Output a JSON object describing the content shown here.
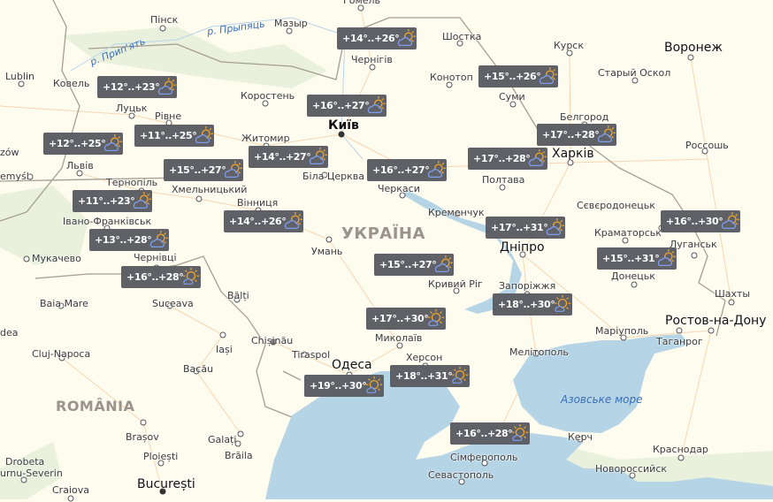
{
  "map": {
    "country_labels": [
      "УКРАЇНА",
      "ROMÂNIA"
    ],
    "water_labels": [
      "Азовське море",
      "р. Прип'ять",
      "р. Прыпяць"
    ],
    "colors": {
      "land": "#fefbef",
      "water": "#b5d4e5",
      "forest": "#e9f0dc",
      "border": "#a59d92",
      "road": "#f8d6b0",
      "badge": "#5b5d63",
      "sun": "#f5a623",
      "cloud": "#7b9cf0"
    },
    "cities": [
      "Гомель",
      "Пінск",
      "Мазыр",
      "Чернігів",
      "Шостка",
      "Курск",
      "Воронеж",
      "Конотоп",
      "Старый Оскол",
      "Lublin",
      "Ковель",
      "Коростень",
      "Суми",
      "Луцьк",
      "Рівне",
      "Київ",
      "Белгород",
      "Житомир",
      "Харків",
      "Львів",
      "zów",
      "emyśl",
      "Біла Церква",
      "Россошь",
      "Полтава",
      "Черкаси",
      "Тернопіль",
      "Хмельницький",
      "Вінниця",
      "Кременчук",
      "Сєвєродонецьк",
      "Краматорськ",
      "Луганськ",
      "Івано-Франківськ",
      "Умань",
      "Дніпро",
      "Мукачево",
      "Донецьк",
      "Кривий Ріг",
      "Чернівці",
      "Запоріжжя",
      "Шахты",
      "Baia Mare",
      "Suceava",
      "Bălți",
      "dea",
      "Ростов-на-Дону",
      "Маріуполь",
      "Таганрог",
      "Chișinău",
      "Iași",
      "Миколаїв",
      "Cluj-Napoca",
      "Tiraspol",
      "Мелітополь",
      "Одеса",
      "Херсон",
      "Bacău",
      "Brașov",
      "Galați",
      "Brăila",
      "Керч",
      "Ploiești",
      "Drobeta",
      "urnu-Severin",
      "Сімферополь",
      "Краснодар",
      "Севастополь",
      "Новороссийск",
      "București",
      "Craiova"
    ],
    "forecasts": [
      {
        "temp": "+14°..+26°",
        "icon": "partly-cloudy-icon"
      },
      {
        "temp": "+12°..+23°",
        "icon": "partly-cloudy-icon"
      },
      {
        "temp": "+15°..+26°",
        "icon": "partly-cloudy-icon"
      },
      {
        "temp": "+16°..+27°",
        "icon": "partly-cloudy-icon"
      },
      {
        "temp": "+11°..+25°",
        "icon": "partly-cloudy-icon"
      },
      {
        "temp": "+12°..+25°",
        "icon": "partly-cloudy-icon"
      },
      {
        "temp": "+17°..+28°",
        "icon": "partly-cloudy-icon"
      },
      {
        "temp": "+17°..+28°",
        "icon": "partly-cloudy-icon"
      },
      {
        "temp": "+14°..+27°",
        "icon": "partly-cloudy-icon"
      },
      {
        "temp": "+16°..+27°",
        "icon": "partly-cloudy-icon"
      },
      {
        "temp": "+15°..+27°",
        "icon": "partly-cloudy-icon"
      },
      {
        "temp": "+11°..+23°",
        "icon": "partly-cloudy-icon"
      },
      {
        "temp": "+14°..+26°",
        "icon": "partly-cloudy-icon"
      },
      {
        "temp": "+16°..+30°",
        "icon": "partly-cloudy-icon"
      },
      {
        "temp": "+17°..+31°",
        "icon": "partly-cloudy-icon"
      },
      {
        "temp": "+13°..+28°",
        "icon": "partly-cloudy-icon"
      },
      {
        "temp": "+15°..+31°",
        "icon": "partly-cloudy-icon"
      },
      {
        "temp": "+15°..+27°",
        "icon": "partly-cloudy-icon"
      },
      {
        "temp": "+16°..+28°",
        "icon": "mostly-sunny-icon"
      },
      {
        "temp": "+18°..+30°",
        "icon": "mostly-sunny-icon"
      },
      {
        "temp": "+17°..+30°",
        "icon": "mostly-sunny-icon"
      },
      {
        "temp": "+18°..+31°",
        "icon": "mostly-sunny-icon"
      },
      {
        "temp": "+19°..+30°",
        "icon": "mostly-sunny-icon"
      },
      {
        "temp": "+16°..+28°",
        "icon": "mostly-sunny-icon"
      }
    ]
  }
}
